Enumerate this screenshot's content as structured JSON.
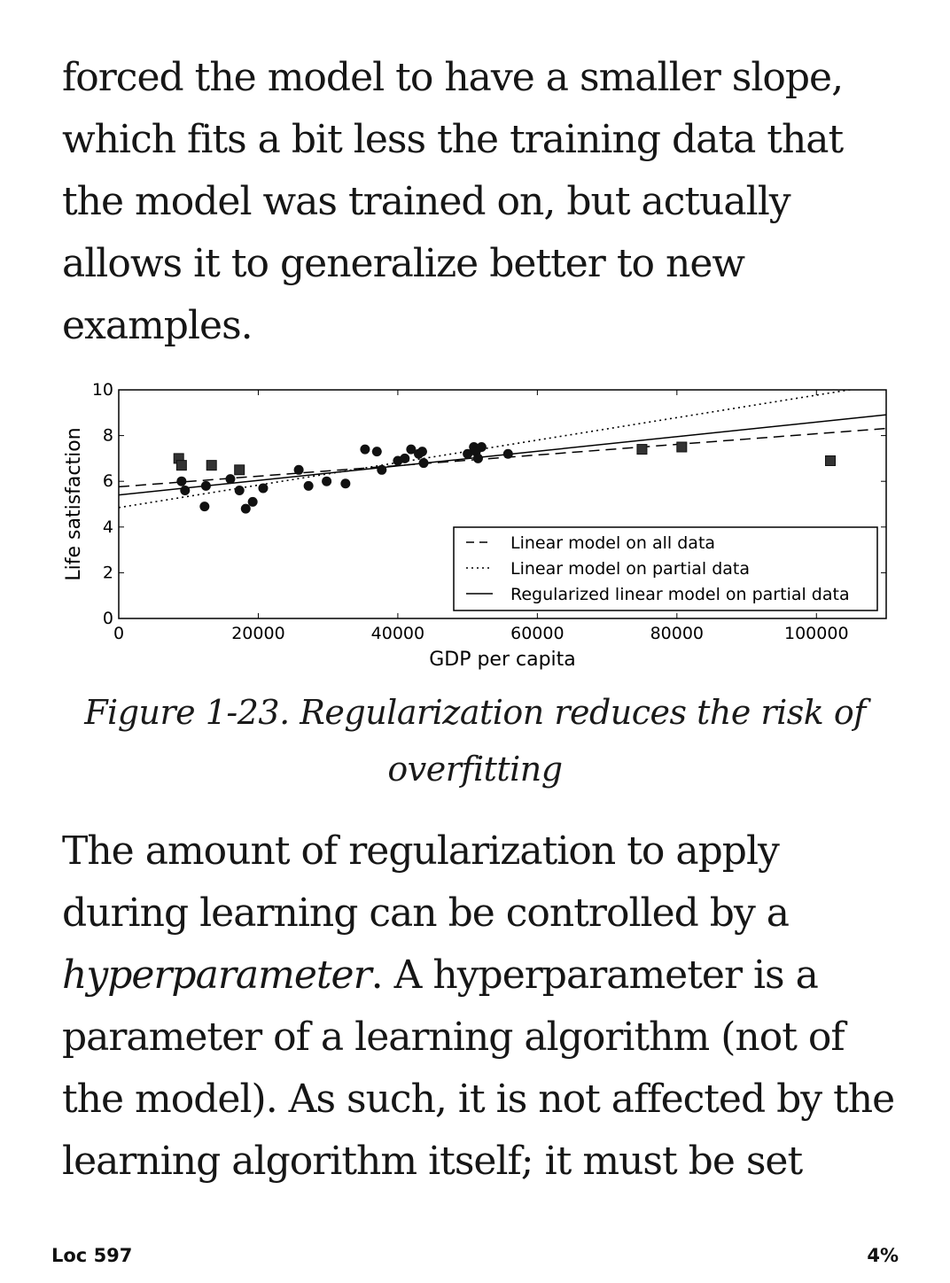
{
  "text_top": [
    "forced the model to have a smaller slope,",
    "which fits a bit less the training data that",
    "the model was trained on, but actually",
    "allows it to generalize better to new",
    "examples."
  ],
  "caption": [
    "Figure 1-23. Regularization reduces the risk of",
    "overfitting"
  ],
  "text_bottom": {
    "line1": "The amount of regularization to apply",
    "line2": "during learning can be controlled by a",
    "line3_em": "hyperparameter",
    "line3_rest": ". A hyperparameter is a",
    "line4": "parameter of a learning algorithm (not of",
    "line5": "the model). As such, it is not affected by the",
    "line6": "learning algorithm itself; it must be set"
  },
  "footer": {
    "location": "Loc 597",
    "percent": "4%"
  },
  "chart_data": {
    "type": "scatter",
    "xlabel": "GDP per capita",
    "ylabel": "Life satisfaction",
    "xlim": [
      0,
      110000
    ],
    "ylim": [
      0,
      10
    ],
    "xticks": [
      0,
      20000,
      40000,
      60000,
      80000,
      100000
    ],
    "yticks": [
      0,
      2,
      4,
      6,
      8,
      10
    ],
    "grid": false,
    "legend_position": "lower-right",
    "series": [
      {
        "name": "",
        "marker": "circle",
        "x": [
          9000,
          9500,
          12300,
          12500,
          16000,
          17300,
          18200,
          19200,
          20700,
          25800,
          27200,
          29800,
          32500,
          35300,
          37000,
          37700,
          40000,
          41000,
          41900,
          43000,
          43500,
          43700,
          50000,
          50900,
          51200,
          51500,
          52000,
          55800
        ],
        "y": [
          6.0,
          5.6,
          4.9,
          5.8,
          6.1,
          5.6,
          4.8,
          5.1,
          5.7,
          6.5,
          5.8,
          6.0,
          5.9,
          7.4,
          7.3,
          6.5,
          6.9,
          7.0,
          7.4,
          7.2,
          7.3,
          6.8,
          7.2,
          7.5,
          7.3,
          7.0,
          7.5,
          7.2
        ]
      },
      {
        "name": "",
        "marker": "square",
        "x": [
          8600,
          9000,
          13300,
          17300,
          75000,
          80700,
          102000
        ],
        "y": [
          7.0,
          6.7,
          6.7,
          6.5,
          7.4,
          7.5,
          6.9
        ]
      }
    ],
    "lines": [
      {
        "name": "Linear model on all data",
        "style": "dashed",
        "intercept": 5.76,
        "slope": 2.32e-05
      },
      {
        "name": "Linear model on partial data",
        "style": "dotted",
        "intercept": 4.85,
        "slope": 4.92e-05
      },
      {
        "name": "Regularized linear model on partial data",
        "style": "solid",
        "intercept": 5.4,
        "slope": 3.19e-05
      }
    ]
  }
}
